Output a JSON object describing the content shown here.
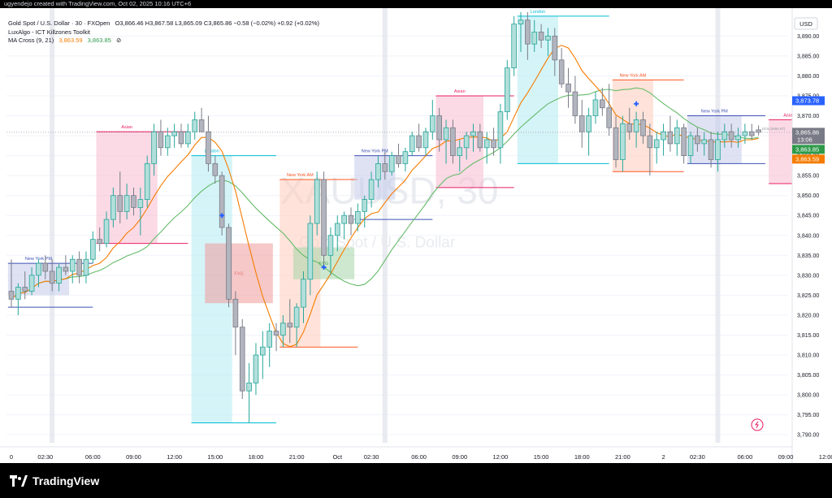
{
  "header": {
    "creator": "ugyendejo created with TradingView.com, Oct 02, 2025 10:16 UTC+6"
  },
  "legend": {
    "symbol": "Gold Spot / U.S. Dollar · 30 · FXOpen",
    "ohlc": "O3,866.46  H3,867.58  L3,865.09  C3,865.86  −0.58 (−0.02%)  +0.92 (+0.02%)",
    "indicator": "LuxAlgo - ICT Killzones Toolkit",
    "ma_label": "MA Cross (9, 21)",
    "ma_fast": "3,863.59",
    "ma_slow": "3,863.85",
    "ma_eye": "⊘"
  },
  "watermark": {
    "ticker": "XAUUSD, 30",
    "name": "Gold Spot / U.S. Dollar"
  },
  "footer": {
    "brand": "TradingView"
  },
  "colors": {
    "up": "#26a69a",
    "up_fill": "#b2dfdb",
    "down": "#787b86",
    "down_fill": "#b2b5be",
    "ma_fast": "#f57c00",
    "ma_slow": "#66bb6a",
    "asian": "#f8bbd0",
    "asian_line": "#e91e63",
    "london": "#b2ebf2",
    "london_line": "#00bcd4",
    "nyam": "#ffccbc",
    "nyam_line": "#ff5722",
    "nypm": "#c5cae9",
    "nypm_line": "#3f51b5",
    "fvg": "#ef9a9a",
    "fvg_bull": "#a5d6a7"
  },
  "chart_data": {
    "type": "candlestick",
    "currency": "USD",
    "ylim": [
      3788,
      3897
    ],
    "y_ticks": [
      3790,
      3795,
      3800,
      3805,
      3810,
      3815,
      3820,
      3825,
      3830,
      3835,
      3840,
      3845,
      3850,
      3855,
      3860,
      3865,
      3870,
      3875,
      3880,
      3885,
      3890
    ],
    "y_tick_labels": [
      "3,790.00",
      "3,795.00",
      "3,800.00",
      "3,805.00",
      "3,810.00",
      "3,815.00",
      "3,820.00",
      "3,825.00",
      "3,830.00",
      "3,835.00",
      "3,840.00",
      "3,845.00",
      "3,850.00",
      "3,855.00",
      "3,860.00",
      "3,865.00",
      "3,870.00",
      "3,875.00",
      "3,880.00",
      "3,885.00",
      "3,890.00"
    ],
    "x_ticks": [
      {
        "label": "0",
        "bar": 0
      },
      {
        "label": "02:30",
        "bar": 5
      },
      {
        "label": "06:00",
        "bar": 12
      },
      {
        "label": "09:00",
        "bar": 18
      },
      {
        "label": "12:00",
        "bar": 24
      },
      {
        "label": "15:00",
        "bar": 30
      },
      {
        "label": "18:00",
        "bar": 36
      },
      {
        "label": "21:00",
        "bar": 42
      },
      {
        "label": "Oct",
        "bar": 48
      },
      {
        "label": "02:30",
        "bar": 53
      },
      {
        "label": "06:00",
        "bar": 60
      },
      {
        "label": "09:00",
        "bar": 66
      },
      {
        "label": "12:00",
        "bar": 72
      },
      {
        "label": "15:00",
        "bar": 78
      },
      {
        "label": "18:00",
        "bar": 84
      },
      {
        "label": "21:00",
        "bar": 90
      },
      {
        "label": "2",
        "bar": 96
      },
      {
        "label": "02:30",
        "bar": 101
      },
      {
        "label": "06:00",
        "bar": 108
      },
      {
        "label": "09:00",
        "bar": 114
      },
      {
        "label": "12:00",
        "bar": 120
      }
    ],
    "price_labels": [
      {
        "value": 3873.78,
        "text": "3,873.78",
        "color": "#2962ff"
      },
      {
        "value": 3865.86,
        "text": "3,865.86",
        "color": "#787b86"
      },
      {
        "value": 3863.85,
        "text": "3,863.85",
        "color": "#2e9a4a"
      },
      {
        "value": 3863.59,
        "text": "3,863.59",
        "color": "#f57c00"
      }
    ],
    "countdown": "13:06",
    "candles": [
      {
        "o": 3826,
        "h": 3834,
        "l": 3822,
        "c": 3824
      },
      {
        "o": 3824,
        "h": 3828,
        "l": 3820,
        "c": 3827
      },
      {
        "o": 3827,
        "h": 3831,
        "l": 3824,
        "c": 3826
      },
      {
        "o": 3826,
        "h": 3832,
        "l": 3825,
        "c": 3830
      },
      {
        "o": 3830,
        "h": 3834,
        "l": 3827,
        "c": 3833
      },
      {
        "o": 3833,
        "h": 3835,
        "l": 3829,
        "c": 3831
      },
      {
        "o": 3831,
        "h": 3834,
        "l": 3826,
        "c": 3828
      },
      {
        "o": 3828,
        "h": 3833,
        "l": 3826,
        "c": 3832
      },
      {
        "o": 3832,
        "h": 3835,
        "l": 3830,
        "c": 3831
      },
      {
        "o": 3831,
        "h": 3835,
        "l": 3828,
        "c": 3834
      },
      {
        "o": 3834,
        "h": 3836,
        "l": 3828,
        "c": 3830
      },
      {
        "o": 3830,
        "h": 3836,
        "l": 3828,
        "c": 3834
      },
      {
        "o": 3834,
        "h": 3841,
        "l": 3833,
        "c": 3839
      },
      {
        "o": 3839,
        "h": 3842,
        "l": 3836,
        "c": 3838
      },
      {
        "o": 3838,
        "h": 3846,
        "l": 3837,
        "c": 3844
      },
      {
        "o": 3844,
        "h": 3852,
        "l": 3842,
        "c": 3850
      },
      {
        "o": 3850,
        "h": 3856,
        "l": 3843,
        "c": 3846
      },
      {
        "o": 3846,
        "h": 3853,
        "l": 3844,
        "c": 3850
      },
      {
        "o": 3850,
        "h": 3852,
        "l": 3845,
        "c": 3847
      },
      {
        "o": 3847,
        "h": 3852,
        "l": 3840,
        "c": 3849
      },
      {
        "o": 3849,
        "h": 3860,
        "l": 3847,
        "c": 3858
      },
      {
        "o": 3858,
        "h": 3868,
        "l": 3855,
        "c": 3866
      },
      {
        "o": 3866,
        "h": 3869,
        "l": 3860,
        "c": 3862
      },
      {
        "o": 3862,
        "h": 3867,
        "l": 3860,
        "c": 3865
      },
      {
        "o": 3865,
        "h": 3868,
        "l": 3862,
        "c": 3866
      },
      {
        "o": 3866,
        "h": 3868,
        "l": 3862,
        "c": 3863
      },
      {
        "o": 3863,
        "h": 3868,
        "l": 3862,
        "c": 3866
      },
      {
        "o": 3866,
        "h": 3871,
        "l": 3864,
        "c": 3869
      },
      {
        "o": 3869,
        "h": 3872,
        "l": 3866,
        "c": 3866
      },
      {
        "o": 3866,
        "h": 3870,
        "l": 3856,
        "c": 3858
      },
      {
        "o": 3858,
        "h": 3860,
        "l": 3853,
        "c": 3855
      },
      {
        "o": 3855,
        "h": 3856,
        "l": 3840,
        "c": 3842
      },
      {
        "o": 3842,
        "h": 3843,
        "l": 3822,
        "c": 3824
      },
      {
        "o": 3824,
        "h": 3826,
        "l": 3810,
        "c": 3817
      },
      {
        "o": 3817,
        "h": 3819,
        "l": 3799,
        "c": 3801
      },
      {
        "o": 3801,
        "h": 3808,
        "l": 3793,
        "c": 3803
      },
      {
        "o": 3803,
        "h": 3813,
        "l": 3800,
        "c": 3810
      },
      {
        "o": 3810,
        "h": 3816,
        "l": 3804,
        "c": 3812
      },
      {
        "o": 3812,
        "h": 3818,
        "l": 3807,
        "c": 3816
      },
      {
        "o": 3816,
        "h": 3818,
        "l": 3811,
        "c": 3815
      },
      {
        "o": 3815,
        "h": 3820,
        "l": 3812,
        "c": 3818
      },
      {
        "o": 3818,
        "h": 3824,
        "l": 3813,
        "c": 3817
      },
      {
        "o": 3817,
        "h": 3823,
        "l": 3812,
        "c": 3822
      },
      {
        "o": 3822,
        "h": 3831,
        "l": 3818,
        "c": 3829
      },
      {
        "o": 3829,
        "h": 3845,
        "l": 3825,
        "c": 3843
      },
      {
        "o": 3843,
        "h": 3856,
        "l": 3840,
        "c": 3854
      },
      {
        "o": 3854,
        "h": 3856,
        "l": 3832,
        "c": 3835
      },
      {
        "o": 3835,
        "h": 3842,
        "l": 3830,
        "c": 3840
      },
      {
        "o": 3840,
        "h": 3845,
        "l": 3836,
        "c": 3843
      },
      {
        "o": 3843,
        "h": 3846,
        "l": 3839,
        "c": 3845
      },
      {
        "o": 3845,
        "h": 3847,
        "l": 3840,
        "c": 3843
      },
      {
        "o": 3843,
        "h": 3848,
        "l": 3841,
        "c": 3846
      },
      {
        "o": 3846,
        "h": 3850,
        "l": 3842,
        "c": 3849
      },
      {
        "o": 3849,
        "h": 3856,
        "l": 3847,
        "c": 3854
      },
      {
        "o": 3854,
        "h": 3860,
        "l": 3852,
        "c": 3858
      },
      {
        "o": 3858,
        "h": 3861,
        "l": 3854,
        "c": 3856
      },
      {
        "o": 3856,
        "h": 3861,
        "l": 3855,
        "c": 3860
      },
      {
        "o": 3860,
        "h": 3863,
        "l": 3857,
        "c": 3858
      },
      {
        "o": 3858,
        "h": 3862,
        "l": 3856,
        "c": 3861
      },
      {
        "o": 3861,
        "h": 3866,
        "l": 3860,
        "c": 3865
      },
      {
        "o": 3865,
        "h": 3868,
        "l": 3861,
        "c": 3862
      },
      {
        "o": 3862,
        "h": 3867,
        "l": 3860,
        "c": 3866
      },
      {
        "o": 3866,
        "h": 3874,
        "l": 3864,
        "c": 3870
      },
      {
        "o": 3870,
        "h": 3872,
        "l": 3861,
        "c": 3864
      },
      {
        "o": 3864,
        "h": 3869,
        "l": 3858,
        "c": 3867
      },
      {
        "o": 3867,
        "h": 3869,
        "l": 3858,
        "c": 3860
      },
      {
        "o": 3860,
        "h": 3864,
        "l": 3856,
        "c": 3862
      },
      {
        "o": 3862,
        "h": 3866,
        "l": 3859,
        "c": 3865
      },
      {
        "o": 3865,
        "h": 3868,
        "l": 3861,
        "c": 3866
      },
      {
        "o": 3866,
        "h": 3868,
        "l": 3861,
        "c": 3862
      },
      {
        "o": 3862,
        "h": 3866,
        "l": 3858,
        "c": 3864
      },
      {
        "o": 3864,
        "h": 3867,
        "l": 3860,
        "c": 3862
      },
      {
        "o": 3862,
        "h": 3873,
        "l": 3858,
        "c": 3871
      },
      {
        "o": 3871,
        "h": 3884,
        "l": 3869,
        "c": 3882
      },
      {
        "o": 3882,
        "h": 3895,
        "l": 3880,
        "c": 3893
      },
      {
        "o": 3893,
        "h": 3896,
        "l": 3886,
        "c": 3894
      },
      {
        "o": 3894,
        "h": 3896,
        "l": 3884,
        "c": 3888
      },
      {
        "o": 3888,
        "h": 3894,
        "l": 3886,
        "c": 3891
      },
      {
        "o": 3891,
        "h": 3893,
        "l": 3887,
        "c": 3889
      },
      {
        "o": 3889,
        "h": 3892,
        "l": 3885,
        "c": 3890
      },
      {
        "o": 3890,
        "h": 3892,
        "l": 3880,
        "c": 3884
      },
      {
        "o": 3884,
        "h": 3887,
        "l": 3877,
        "c": 3878
      },
      {
        "o": 3878,
        "h": 3882,
        "l": 3872,
        "c": 3876
      },
      {
        "o": 3876,
        "h": 3880,
        "l": 3868,
        "c": 3870
      },
      {
        "o": 3870,
        "h": 3874,
        "l": 3862,
        "c": 3866
      },
      {
        "o": 3866,
        "h": 3872,
        "l": 3860,
        "c": 3870
      },
      {
        "o": 3870,
        "h": 3876,
        "l": 3868,
        "c": 3874
      },
      {
        "o": 3874,
        "h": 3877,
        "l": 3870,
        "c": 3872
      },
      {
        "o": 3872,
        "h": 3878,
        "l": 3865,
        "c": 3867
      },
      {
        "o": 3867,
        "h": 3870,
        "l": 3857,
        "c": 3859
      },
      {
        "o": 3859,
        "h": 3870,
        "l": 3856,
        "c": 3868
      },
      {
        "o": 3868,
        "h": 3872,
        "l": 3864,
        "c": 3866
      },
      {
        "o": 3866,
        "h": 3871,
        "l": 3862,
        "c": 3869
      },
      {
        "o": 3869,
        "h": 3871,
        "l": 3863,
        "c": 3865
      },
      {
        "o": 3865,
        "h": 3868,
        "l": 3855,
        "c": 3862
      },
      {
        "o": 3862,
        "h": 3866,
        "l": 3858,
        "c": 3864
      },
      {
        "o": 3864,
        "h": 3868,
        "l": 3860,
        "c": 3866
      },
      {
        "o": 3866,
        "h": 3870,
        "l": 3861,
        "c": 3863
      },
      {
        "o": 3863,
        "h": 3869,
        "l": 3860,
        "c": 3867
      },
      {
        "o": 3867,
        "h": 3868,
        "l": 3858,
        "c": 3860
      },
      {
        "o": 3860,
        "h": 3866,
        "l": 3858,
        "c": 3865
      },
      {
        "o": 3865,
        "h": 3867,
        "l": 3861,
        "c": 3863
      },
      {
        "o": 3863,
        "h": 3866,
        "l": 3860,
        "c": 3864
      },
      {
        "o": 3864,
        "h": 3866,
        "l": 3857,
        "c": 3859
      },
      {
        "o": 3859,
        "h": 3866,
        "l": 3856,
        "c": 3864
      },
      {
        "o": 3864,
        "h": 3868,
        "l": 3862,
        "c": 3866
      },
      {
        "o": 3866,
        "h": 3868,
        "l": 3862,
        "c": 3864
      },
      {
        "o": 3864,
        "h": 3867,
        "l": 3862,
        "c": 3865
      },
      {
        "o": 3865,
        "h": 3868,
        "l": 3863,
        "c": 3866
      },
      {
        "o": 3866,
        "h": 3868,
        "l": 3864,
        "c": 3865
      },
      {
        "o": 3866.46,
        "h": 3867.58,
        "l": 3865.09,
        "c": 3865.86
      }
    ],
    "zones": [
      {
        "kind": "nypm",
        "label": "New York PM",
        "b0": 0,
        "b1": 8,
        "hi": 3833,
        "lo": 3825,
        "line_lo": 3822,
        "line_end": 12
      },
      {
        "kind": "asian",
        "label": "Asian",
        "b0": 13,
        "b1": 21,
        "hi": 3866,
        "lo": 3838,
        "line_end": 26
      },
      {
        "kind": "london",
        "label": "London",
        "b0": 27,
        "b1": 32,
        "hi": 3860,
        "lo": 3793,
        "line_end": 39
      },
      {
        "kind": "fvg",
        "label": "FVG",
        "b0": 29,
        "b1": 38,
        "hi": 3838,
        "lo": 3823
      },
      {
        "kind": "nyam",
        "label": "New York AM",
        "b0": 40,
        "b1": 45,
        "hi": 3854,
        "lo": 3812,
        "line_end": 51
      },
      {
        "kind": "fvg_bull",
        "label": "FVG",
        "b0": 42,
        "b1": 50,
        "hi": 3837,
        "lo": 3829
      },
      {
        "kind": "nypm",
        "label": "New York PM",
        "b0": 51,
        "b1": 56,
        "hi": 3860,
        "lo": 3849,
        "line_lo": 3844,
        "line_end": 62
      },
      {
        "kind": "asian",
        "label": "Asian",
        "b0": 63,
        "b1": 69,
        "hi": 3875,
        "lo": 3852,
        "line_end": 74
      },
      {
        "kind": "london",
        "label": "London",
        "b0": 75,
        "b1": 80,
        "hi": 3895,
        "lo": 3858,
        "line_end": 88
      },
      {
        "kind": "nyam",
        "label": "New York AM",
        "b0": 89,
        "b1": 94,
        "hi": 3879,
        "lo": 3856,
        "line_end": 99
      },
      {
        "kind": "nypm",
        "label": "New York PM",
        "b0": 100,
        "b1": 107,
        "hi": 3870,
        "lo": 3858,
        "line_end": 111
      },
      {
        "kind": "asian",
        "label": "Asian",
        "b0": 112,
        "b1": 117,
        "hi": 3869,
        "lo": 3853,
        "line_end": 119
      }
    ],
    "markers": [
      {
        "bar": 31,
        "value": 3845
      },
      {
        "bar": 46,
        "value": 3832
      },
      {
        "bar": 92,
        "value": 3873
      }
    ],
    "dol_label": "DOL(3866.87)",
    "sessions_gray": [
      6,
      55,
      104
    ]
  }
}
